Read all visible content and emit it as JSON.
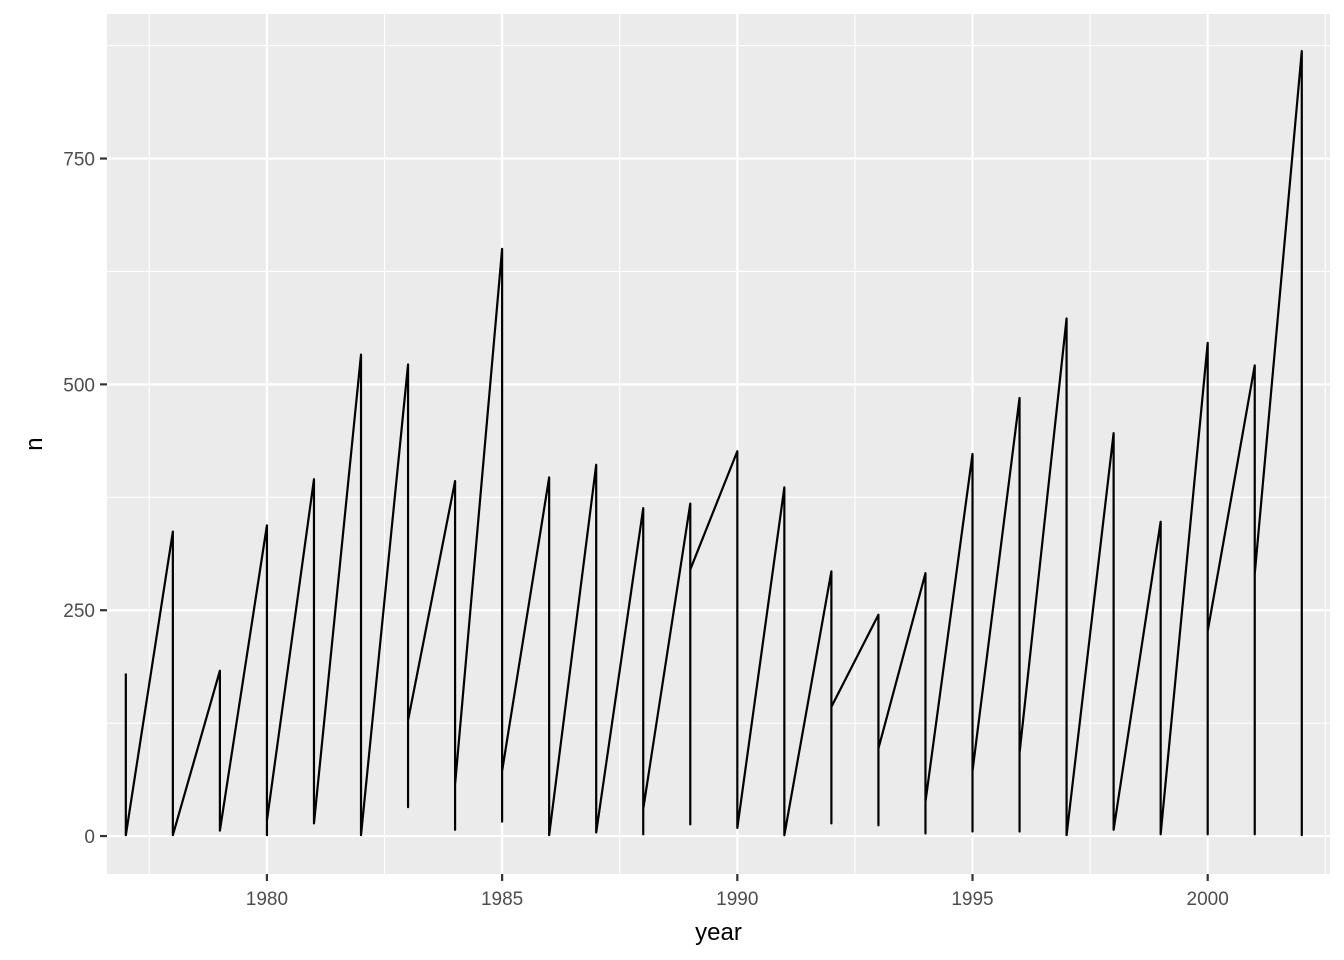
{
  "chart_data": {
    "type": "line",
    "title": "",
    "xlabel": "year",
    "ylabel": "n",
    "xlim": [
      1976.6,
      2002.6
    ],
    "ylim": [
      -42,
      910
    ],
    "x_ticks": [
      1980,
      1985,
      1990,
      1995,
      2000
    ],
    "x_minor_ticks": [
      1977.5,
      1982.5,
      1987.5,
      1992.5,
      1997.5,
      2002.5
    ],
    "y_ticks": [
      0,
      250,
      500,
      750
    ],
    "y_minor_ticks": [
      125,
      375,
      625,
      875
    ],
    "grid": true,
    "legend": "none",
    "line_color": "#000000",
    "panel_color": "#ebebeb",
    "grid_color": "#ffffff",
    "series": [
      {
        "x": [
          1977,
          1977,
          1978,
          1978,
          1979,
          1979,
          1980,
          1980,
          1980,
          1981,
          1981,
          1982,
          1982,
          1983,
          1983,
          1983,
          1984,
          1984,
          1984,
          1985,
          1985,
          1985,
          1986,
          1986,
          1987,
          1987,
          1988,
          1988,
          1988,
          1989,
          1989,
          1989,
          1990,
          1990,
          1991,
          1991,
          1992,
          1992,
          1992,
          1993,
          1993,
          1993,
          1994,
          1994,
          1994,
          1995,
          1995,
          1995,
          1996,
          1996,
          1996,
          1997,
          1997,
          1998,
          1998,
          1999,
          1999,
          2000,
          2000,
          2000,
          2001,
          2001,
          2001,
          2002,
          2002,
          2002
        ],
        "y": [
          180,
          1,
          337,
          1,
          183,
          6,
          344,
          1,
          17,
          395,
          14,
          533,
          1,
          522,
          32,
          128,
          393,
          7,
          57,
          650,
          16,
          72,
          397,
          1,
          411,
          4,
          363,
          2,
          30,
          368,
          13,
          295,
          426,
          9,
          386,
          1,
          293,
          14,
          143,
          245,
          12,
          97,
          291,
          3,
          38,
          423,
          5,
          72,
          485,
          5,
          92,
          573,
          1,
          446,
          7,
          348,
          2,
          546,
          2,
          227,
          521,
          2,
          290,
          869,
          1,
          300
        ]
      }
    ]
  }
}
